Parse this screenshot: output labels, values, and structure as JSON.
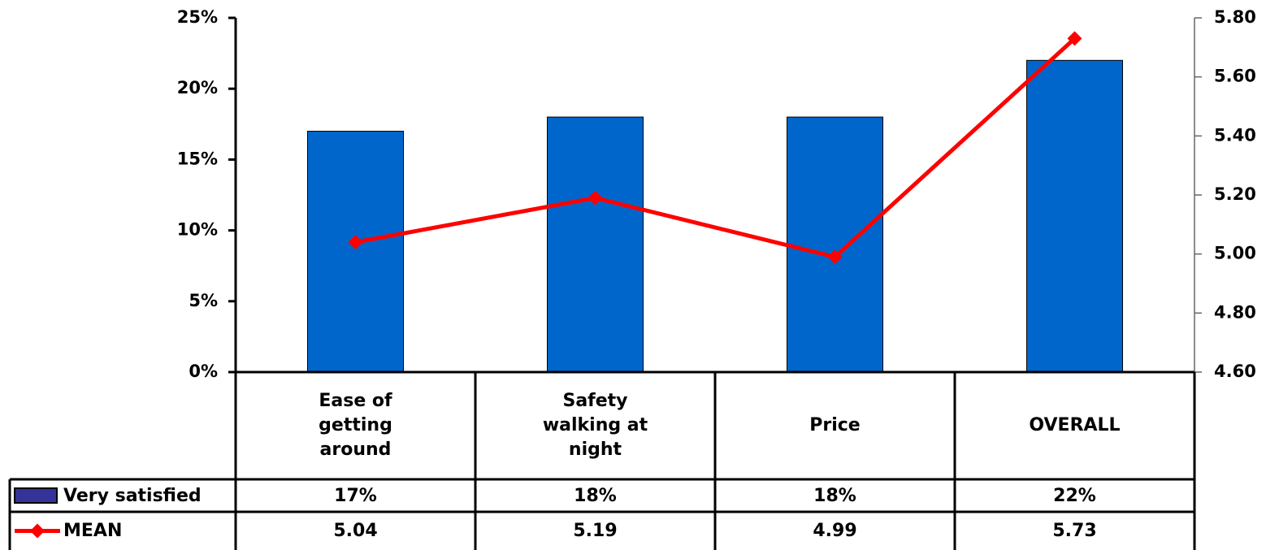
{
  "chart_data": {
    "type": "bar_line",
    "categories": [
      "Ease of getting around",
      "Safety walking at night",
      "Price",
      "OVERALL"
    ],
    "series": [
      {
        "name": "Very satisfied",
        "type": "bar",
        "color": "#0066cc",
        "values": [
          17,
          18,
          18,
          22
        ],
        "value_labels": [
          "17%",
          "18%",
          "18%",
          "22%"
        ]
      },
      {
        "name": "MEAN",
        "type": "line",
        "axis": "y2",
        "color": "#ff0000",
        "values": [
          5.04,
          5.19,
          4.99,
          5.73
        ]
      }
    ],
    "ylim": [
      0,
      25
    ],
    "yticks": [
      {
        "value": 0,
        "label": "0%"
      },
      {
        "value": 5,
        "label": "5%"
      },
      {
        "value": 10,
        "label": "10%"
      },
      {
        "value": 15,
        "label": "15%"
      },
      {
        "value": 20,
        "label": "20%"
      },
      {
        "value": 25,
        "label": "25%"
      }
    ],
    "y2lim": [
      4.6,
      5.8
    ],
    "y2ticks": [
      {
        "value": 4.6,
        "label": "4.60"
      },
      {
        "value": 4.8,
        "label": "4.80"
      },
      {
        "value": 5.0,
        "label": "5.00"
      },
      {
        "value": 5.2,
        "label": "5.20"
      },
      {
        "value": 5.4,
        "label": "5.40"
      },
      {
        "value": 5.6,
        "label": "5.60"
      },
      {
        "value": 5.8,
        "label": "5.80"
      }
    ],
    "data_table": true
  }
}
